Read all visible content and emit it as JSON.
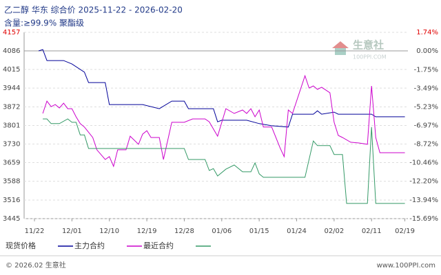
{
  "chart_data": {
    "type": "line",
    "title": "乙二醇 华东 综合价 2025-11-22 - 2026-02-20",
    "subtitle": "含量:≥99.9% 聚酯级",
    "ylim": [
      3445,
      4157
    ],
    "yticks": [
      4157,
      4086,
      4015,
      3944,
      3872,
      3801,
      3730,
      3659,
      3588,
      3516,
      3445
    ],
    "y2lim": [
      -15.69,
      1.74
    ],
    "y2ticks": [
      {
        "value": 1.74,
        "label": "1.74%"
      },
      {
        "value": 0,
        "label": "0.00%"
      },
      {
        "value": -1.75,
        "label": "-1.75%"
      },
      {
        "value": -3.49,
        "label": "-3.49%"
      },
      {
        "value": -5.23,
        "label": "-5.23%"
      },
      {
        "value": -6.97,
        "label": "-6.97%"
      },
      {
        "value": -8.72,
        "label": "-8.72%"
      },
      {
        "value": -10.46,
        "label": "-10.46%"
      },
      {
        "value": -12.2,
        "label": "-12.20%"
      },
      {
        "value": -13.94,
        "label": "-13.94%"
      },
      {
        "value": -15.69,
        "label": "-15.69%"
      }
    ],
    "xticks": [
      "11/22",
      "12/01",
      "12/10",
      "12/19",
      "12/28",
      "01/06",
      "01/15",
      "01/24",
      "02/02",
      "02/11",
      "02/19"
    ],
    "top_tick_color": "#e00000",
    "grid": true,
    "series": [
      {
        "name": "现货价格",
        "color": "#000099",
        "x": [
          "11/23",
          "11/24",
          "11/25",
          "11/29",
          "12/01",
          "12/04",
          "12/05",
          "12/09",
          "12/10",
          "12/18",
          "12/22",
          "12/25",
          "12/28",
          "12/29",
          "01/04",
          "01/05",
          "01/06",
          "01/12",
          "01/15",
          "01/18",
          "01/22",
          "01/23",
          "01/28",
          "01/29",
          "01/30",
          "02/02",
          "02/03",
          "02/11",
          "02/12",
          "02/19"
        ],
        "values": [
          4086,
          4091,
          4049,
          4049,
          4036,
          4005,
          3965,
          3965,
          3881,
          3881,
          3865,
          3894,
          3894,
          3865,
          3865,
          3815,
          3821,
          3821,
          3808,
          3800,
          3795,
          3844,
          3844,
          3857,
          3844,
          3852,
          3844,
          3844,
          3834,
          3834
        ]
      },
      {
        "name": "主力合约",
        "color": "#cc00cc",
        "x": [
          "11/24",
          "11/25",
          "11/26",
          "11/27",
          "11/28",
          "11/29",
          "11/30",
          "12/01",
          "12/02",
          "12/03",
          "12/04",
          "12/06",
          "12/07",
          "12/09",
          "12/10",
          "12/11",
          "12/12",
          "12/14",
          "12/15",
          "12/17",
          "12/18",
          "12/19",
          "12/20",
          "12/22",
          "12/23",
          "12/25",
          "12/28",
          "12/30",
          "01/02",
          "01/03",
          "01/05",
          "01/07",
          "01/09",
          "01/11",
          "01/12",
          "01/13",
          "01/14",
          "01/15",
          "01/16",
          "01/18",
          "01/20",
          "01/21",
          "01/22",
          "01/23",
          "01/26",
          "01/27",
          "01/28",
          "01/29",
          "01/30",
          "02/01",
          "02/02",
          "02/03",
          "02/04",
          "02/06",
          "02/08",
          "02/10",
          "02/11",
          "02/12",
          "02/13",
          "02/19"
        ],
        "values": [
          3847,
          3894,
          3873,
          3881,
          3868,
          3886,
          3865,
          3865,
          3834,
          3808,
          3795,
          3755,
          3708,
          3671,
          3682,
          3645,
          3708,
          3708,
          3760,
          3729,
          3768,
          3781,
          3755,
          3755,
          3671,
          3813,
          3813,
          3826,
          3826,
          3815,
          3760,
          3865,
          3847,
          3860,
          3847,
          3865,
          3834,
          3860,
          3795,
          3795,
          3716,
          3682,
          3860,
          3847,
          3991,
          3944,
          3952,
          3939,
          3947,
          3926,
          3813,
          3763,
          3755,
          3737,
          3734,
          3729,
          3952,
          3755,
          3697,
          3697
        ]
      },
      {
        "name": "最近合约",
        "color": "#339966",
        "x": [
          "11/24",
          "11/25",
          "11/26",
          "11/28",
          "11/30",
          "12/01",
          "12/02",
          "12/03",
          "12/04",
          "12/05",
          "12/28",
          "12/29",
          "01/02",
          "01/03",
          "01/04",
          "01/05",
          "01/07",
          "01/09",
          "01/11",
          "01/13",
          "01/14",
          "01/15",
          "01/16",
          "01/26",
          "01/28",
          "01/29",
          "02/01",
          "02/02",
          "02/04",
          "02/05",
          "02/10",
          "02/11",
          "02/12",
          "02/19"
        ],
        "values": [
          3826,
          3826,
          3808,
          3808,
          3826,
          3813,
          3813,
          3765,
          3765,
          3713,
          3713,
          3671,
          3671,
          3629,
          3636,
          3608,
          3634,
          3650,
          3624,
          3624,
          3658,
          3616,
          3603,
          3603,
          3742,
          3724,
          3724,
          3690,
          3690,
          3503,
          3503,
          3795,
          3503,
          3503
        ]
      }
    ]
  },
  "watermark": {
    "name": "生意社",
    "url": "100PPI.COM"
  },
  "footer": {
    "copyright": "© 2026.02 生意社",
    "site": "www.100PPI.com"
  }
}
